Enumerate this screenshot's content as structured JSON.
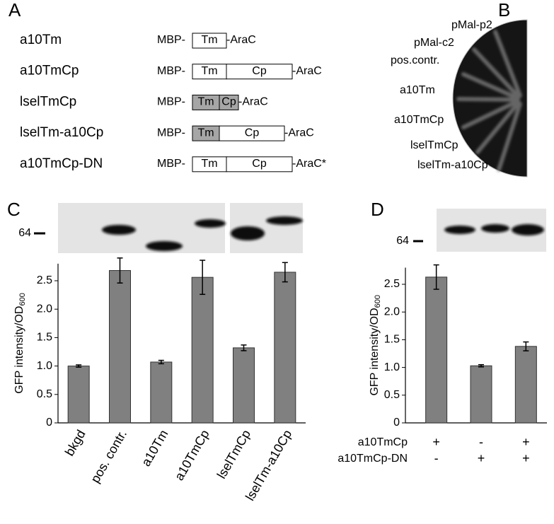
{
  "panel_labels": [
    "A",
    "B",
    "C",
    "D"
  ],
  "constructs": [
    {
      "name": "a10Tm",
      "prefix": "MBP-",
      "parts": [
        {
          "label": "Tm",
          "shaded": false
        }
      ],
      "suffix": "-AraC"
    },
    {
      "name": "a10TmCp",
      "prefix": "MBP-",
      "parts": [
        {
          "label": "Tm",
          "shaded": false
        },
        {
          "label": "Cp",
          "shaded": false
        }
      ],
      "suffix": "-AraC"
    },
    {
      "name": "lselTmCp",
      "prefix": "MBP-",
      "parts": [
        {
          "label": "Tm",
          "shaded": true
        },
        {
          "label": "Cp",
          "shaded": true
        }
      ],
      "suffix": "-AraC"
    },
    {
      "name": "lselTm-a10Cp",
      "prefix": "MBP-",
      "parts": [
        {
          "label": "Tm",
          "shaded": true
        },
        {
          "label": "Cp",
          "shaded": false
        }
      ],
      "suffix": "-AraC"
    },
    {
      "name": "a10TmCp-DN",
      "prefix": "MBP-",
      "parts": [
        {
          "label": "Tm",
          "shaded": false
        },
        {
          "label": "Cp",
          "shaded": false
        }
      ],
      "suffix": "-AraC*"
    }
  ],
  "plate_labels": [
    "pMal-p2",
    "pMal-c2",
    "pos.contr.",
    "a10Tm",
    "a10TmCp",
    "lselTmCp",
    "lselTm-a10Cp"
  ],
  "blot_markers": [
    "64",
    "64"
  ],
  "chart_data": [
    {
      "type": "bar",
      "y_label": "GFP intensity/OD",
      "y_label_subscript": "600",
      "categories": [
        "bkgd",
        "pos. contr.",
        "a10Tm",
        "a10TmCp",
        "lselTmCp",
        "lselTm-a10Cp"
      ],
      "series": [
        {
          "color": "#808080",
          "values": [
            1.0,
            2.68,
            1.07,
            2.56,
            1.32,
            2.65
          ],
          "errors": [
            0.02,
            0.22,
            0.03,
            0.3,
            0.05,
            0.17
          ]
        }
      ],
      "ylim": [
        0,
        2.8
      ],
      "yticks": [
        0,
        0.5,
        {
          "value": 1,
          "label": "1.0"
        },
        1.5,
        {
          "value": 2,
          "label": "2.0"
        },
        2.5
      ]
    },
    {
      "type": "bar",
      "y_label": "GFP intensity/OD",
      "y_label_subscript": "600",
      "series": [
        {
          "color": "#808080",
          "values": [
            2.63,
            1.03,
            1.38
          ],
          "errors": [
            0.22,
            0.02,
            0.08
          ]
        }
      ],
      "conditions": [
        {
          "name": "a10TmCp",
          "signs": [
            "+",
            "-",
            "+"
          ]
        },
        {
          "name": "a10TmCp-DN",
          "signs": [
            "-",
            "+",
            "+"
          ]
        }
      ],
      "ylim": [
        0,
        2.8
      ],
      "yticks": [
        0,
        0.5,
        {
          "value": 1,
          "label": "1.0"
        },
        1.5,
        {
          "value": 2,
          "label": "2.0"
        },
        2.5
      ]
    }
  ]
}
